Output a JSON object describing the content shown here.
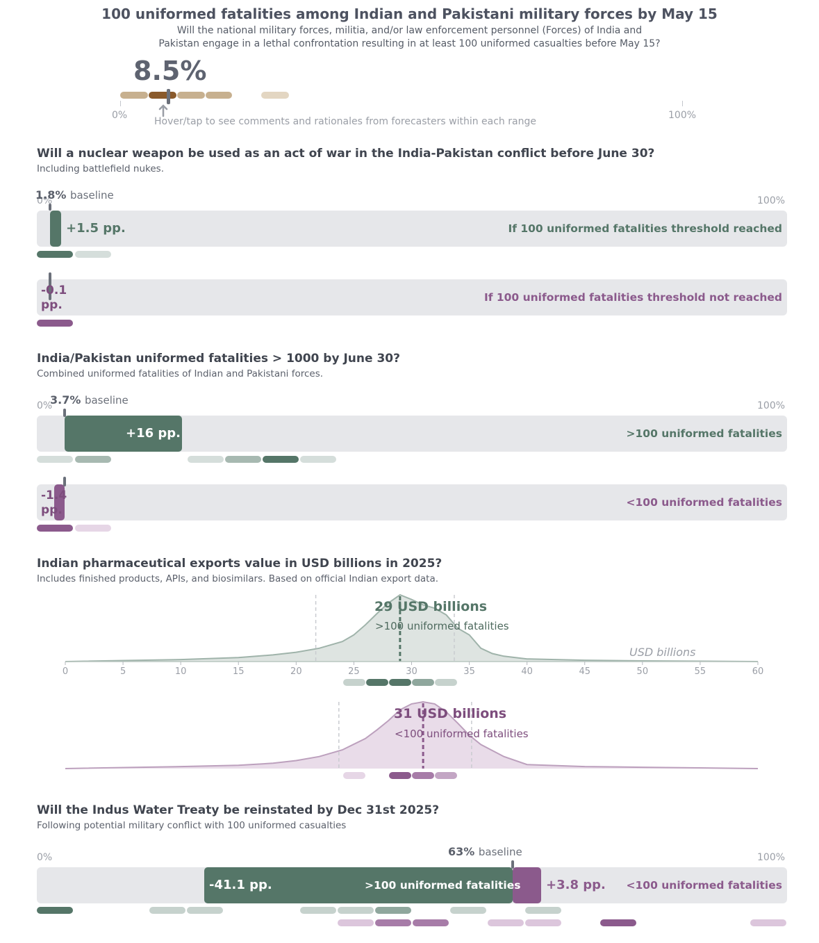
{
  "header": {
    "title": "100 uniformed fatalities among Indian and Pakistani military forces by May 15",
    "subtitle_line1": "Will the national military forces, militia, and/or law enforcement personnel (Forces) of India and",
    "subtitle_line2": "Pakistan engage in a lethal confrontation resulting in at least 100 uniformed casualties before May 15?",
    "probability": "8.5%",
    "axis_min": "0%",
    "axis_max": "100%",
    "hint": "Hover/tap to see comments and rationales from forecasters within each range"
  },
  "sections": {
    "nuclear": {
      "title": "Will a nuclear weapon be used as an act of war in the India-Pakistan conflict before June 30?",
      "subtitle": "Including battlefield nukes.",
      "baseline": "1.8%",
      "baseline_word": "baseline",
      "axis_min": "0%",
      "axis_max": "100%",
      "reached_delta": "+1.5 pp.",
      "reached_label": "If 100 uniformed fatalities threshold reached",
      "not_reached_delta": "-0.1 pp.",
      "not_reached_label": "If 100 uniformed fatalities threshold not reached"
    },
    "fatalities1000": {
      "title": "India/Pakistan uniformed fatalities > 1000 by June 30?",
      "subtitle": "Combined uniformed fatalities of Indian and Pakistani forces.",
      "baseline": "3.7%",
      "baseline_word": "baseline",
      "axis_min": "0%",
      "axis_max": "100%",
      "reached_delta": "+16 pp.",
      "reached_label": ">100 uniformed fatalities",
      "not_reached_delta": "-1.4 pp.",
      "not_reached_label": "<100 uniformed fatalities"
    },
    "pharma": {
      "title": "Indian pharmaceutical exports value in USD billions in 2025?",
      "subtitle": "Includes finished products, APIs, and biosimilars. Based on official Indian export data.",
      "unit_label": "USD billions",
      "reached_value": "29 USD billions",
      "reached_label": ">100 uniformed fatalities",
      "not_reached_value": "31 USD billions",
      "not_reached_label": "<100 uniformed fatalities"
    },
    "indus": {
      "title": "Will the Indus Water Treaty be reinstated by Dec 31st 2025?",
      "subtitle": "Following potential military conflict with 100 uniformed casualties",
      "baseline": "63%",
      "baseline_word": "baseline",
      "axis_min": "0%",
      "axis_max": "100%",
      "reached_delta": "-41.1 pp.",
      "reached_label": ">100 uniformed fatalities",
      "not_reached_delta": "+3.8 pp.",
      "not_reached_label": "<100 uniformed fatalities"
    }
  },
  "colors": {
    "green": "#557668",
    "purple": "#8b5a8c",
    "track": "#e6e7ea",
    "brown": "#8a5a2b",
    "tan": "#c7b08f"
  },
  "chart_data": [
    {
      "type": "bar",
      "name": "100 uniformed fatalities by May 15",
      "values": [
        8.5
      ],
      "xlim": [
        0,
        100
      ]
    },
    {
      "type": "bar",
      "name": "Nuclear weapon used before June 30",
      "baseline": 1.8,
      "series": [
        {
          "condition": "If 100 uniformed fatalities threshold reached",
          "delta": 1.5,
          "value": 3.3
        },
        {
          "condition": "If 100 uniformed fatalities threshold not reached",
          "delta": -0.1,
          "value": 1.7
        }
      ],
      "xlim": [
        0,
        100
      ]
    },
    {
      "type": "bar",
      "name": "Uniformed fatalities > 1000 by June 30",
      "baseline": 3.7,
      "series": [
        {
          "condition": ">100 uniformed fatalities",
          "delta": 16,
          "value": 19.7
        },
        {
          "condition": "<100 uniformed fatalities",
          "delta": -1.4,
          "value": 2.3
        }
      ],
      "xlim": [
        0,
        100
      ]
    },
    {
      "type": "area",
      "name": "Indian pharmaceutical exports 2025",
      "xlabel": "USD billions",
      "xlim": [
        0,
        60
      ],
      "x_ticks": [
        0,
        5,
        10,
        15,
        20,
        25,
        30,
        35,
        40,
        45,
        50,
        55,
        60
      ],
      "series": [
        {
          "condition": ">100 uniformed fatalities",
          "median": 29,
          "p10": 21.7,
          "p90": 33.7,
          "x": [
            0,
            10,
            15,
            18,
            20,
            22,
            24,
            25,
            26,
            27,
            28,
            29,
            30,
            31,
            32,
            33,
            34,
            35,
            36,
            37,
            38,
            40,
            45,
            50,
            60
          ],
          "y": [
            0.0,
            0.03,
            0.06,
            0.1,
            0.14,
            0.2,
            0.3,
            0.4,
            0.55,
            0.72,
            0.88,
            1.0,
            0.93,
            0.85,
            0.8,
            0.7,
            0.5,
            0.4,
            0.2,
            0.12,
            0.08,
            0.04,
            0.02,
            0.01,
            0.0
          ]
        },
        {
          "condition": "<100 uniformed fatalities",
          "median": 31,
          "p10": 23.7,
          "p90": 35.2,
          "x": [
            0,
            10,
            15,
            18,
            20,
            22,
            24,
            26,
            27,
            28,
            29,
            30,
            31,
            32,
            33,
            34,
            35,
            36,
            38,
            40,
            45,
            50,
            60
          ],
          "y": [
            0.0,
            0.03,
            0.05,
            0.08,
            0.12,
            0.18,
            0.28,
            0.45,
            0.58,
            0.72,
            0.88,
            0.97,
            1.0,
            0.97,
            0.85,
            0.68,
            0.5,
            0.36,
            0.18,
            0.06,
            0.03,
            0.02,
            0.0
          ]
        }
      ]
    },
    {
      "type": "bar",
      "name": "Indus Water Treaty reinstated by Dec 31st 2025",
      "baseline": 63,
      "series": [
        {
          "condition": ">100 uniformed fatalities",
          "delta": -41.1,
          "value": 21.9
        },
        {
          "condition": "<100 uniformed fatalities",
          "delta": 3.8,
          "value": 66.8
        }
      ],
      "xlim": [
        0,
        100
      ]
    }
  ]
}
